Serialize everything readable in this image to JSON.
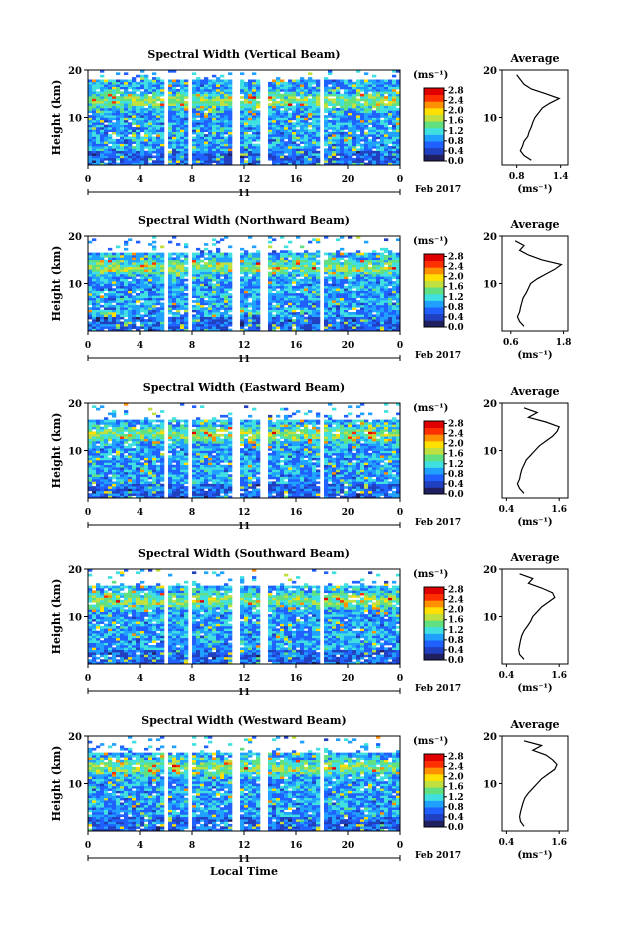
{
  "chart_data": {
    "type": "heatmap",
    "panels": [
      {
        "title": "Spectral Width (Vertical Beam)",
        "avg_title": "Average",
        "avg_ticks": [
          "0.8",
          "1.4"
        ],
        "avg_xlim": [
          0.6,
          1.5
        ],
        "avg_profile": [
          [
            1.0,
            1
          ],
          [
            0.9,
            2
          ],
          [
            0.85,
            3
          ],
          [
            0.88,
            4
          ],
          [
            0.9,
            5
          ],
          [
            0.95,
            6
          ],
          [
            0.97,
            7
          ],
          [
            1.0,
            8
          ],
          [
            1.02,
            9
          ],
          [
            1.05,
            10
          ],
          [
            1.1,
            11
          ],
          [
            1.15,
            12
          ],
          [
            1.25,
            13
          ],
          [
            1.38,
            14
          ],
          [
            1.2,
            15
          ],
          [
            1.0,
            16
          ],
          [
            0.9,
            17
          ],
          [
            0.85,
            18
          ],
          [
            0.8,
            19
          ]
        ]
      },
      {
        "title": "Spectral Width (Northward Beam)",
        "avg_title": "Average",
        "avg_ticks": [
          "0.6",
          "1.8"
        ],
        "avg_xlim": [
          0.4,
          1.9
        ],
        "avg_profile": [
          [
            0.9,
            1
          ],
          [
            0.8,
            2
          ],
          [
            0.75,
            3
          ],
          [
            0.8,
            4
          ],
          [
            0.82,
            5
          ],
          [
            0.85,
            6
          ],
          [
            0.88,
            7
          ],
          [
            0.95,
            8
          ],
          [
            1.0,
            9
          ],
          [
            1.05,
            10
          ],
          [
            1.2,
            11
          ],
          [
            1.4,
            12
          ],
          [
            1.6,
            13
          ],
          [
            1.75,
            14
          ],
          [
            1.3,
            15
          ],
          [
            1.0,
            16
          ],
          [
            0.8,
            17
          ],
          [
            0.9,
            18
          ],
          [
            0.7,
            19
          ]
        ]
      },
      {
        "title": "Spectral Width (Eastward Beam)",
        "avg_title": "Average",
        "avg_ticks": [
          "0.4",
          "1.6"
        ],
        "avg_xlim": [
          0.3,
          1.8
        ],
        "avg_profile": [
          [
            0.8,
            1
          ],
          [
            0.7,
            2
          ],
          [
            0.65,
            3
          ],
          [
            0.7,
            4
          ],
          [
            0.72,
            5
          ],
          [
            0.75,
            6
          ],
          [
            0.8,
            7
          ],
          [
            0.85,
            8
          ],
          [
            0.95,
            9
          ],
          [
            1.05,
            10
          ],
          [
            1.15,
            11
          ],
          [
            1.3,
            12
          ],
          [
            1.45,
            13
          ],
          [
            1.55,
            14
          ],
          [
            1.6,
            15
          ],
          [
            1.3,
            16
          ],
          [
            0.9,
            17
          ],
          [
            1.1,
            18
          ],
          [
            0.8,
            19
          ]
        ]
      },
      {
        "title": "Spectral Width (Southward Beam)",
        "avg_title": "Average",
        "avg_ticks": [
          "0.4",
          "1.6"
        ],
        "avg_xlim": [
          0.3,
          1.8
        ],
        "avg_profile": [
          [
            0.8,
            1
          ],
          [
            0.7,
            2
          ],
          [
            0.68,
            3
          ],
          [
            0.7,
            4
          ],
          [
            0.72,
            5
          ],
          [
            0.75,
            6
          ],
          [
            0.8,
            7
          ],
          [
            0.88,
            8
          ],
          [
            0.95,
            9
          ],
          [
            1.0,
            10
          ],
          [
            1.1,
            11
          ],
          [
            1.2,
            12
          ],
          [
            1.35,
            13
          ],
          [
            1.5,
            14
          ],
          [
            1.45,
            15
          ],
          [
            1.2,
            16
          ],
          [
            0.9,
            17
          ],
          [
            1.0,
            18
          ],
          [
            0.7,
            19
          ]
        ]
      },
      {
        "title": "Spectral Width (Westward Beam)",
        "avg_title": "Average",
        "avg_ticks": [
          "0.4",
          "1.6"
        ],
        "avg_xlim": [
          0.3,
          1.8
        ],
        "avg_profile": [
          [
            0.8,
            1
          ],
          [
            0.72,
            2
          ],
          [
            0.7,
            3
          ],
          [
            0.72,
            4
          ],
          [
            0.75,
            5
          ],
          [
            0.78,
            6
          ],
          [
            0.82,
            7
          ],
          [
            0.9,
            8
          ],
          [
            1.0,
            9
          ],
          [
            1.1,
            10
          ],
          [
            1.2,
            11
          ],
          [
            1.35,
            12
          ],
          [
            1.5,
            13
          ],
          [
            1.55,
            14
          ],
          [
            1.45,
            15
          ],
          [
            1.3,
            16
          ],
          [
            1.0,
            17
          ],
          [
            1.2,
            18
          ],
          [
            0.8,
            19
          ]
        ]
      }
    ],
    "ylabel": "Height (km)",
    "yticks": [
      "20",
      "10"
    ],
    "ylim": [
      0,
      20
    ],
    "xlabel": "Local Time",
    "xticks": [
      "0",
      "4",
      "8",
      "12",
      "16",
      "20",
      "0"
    ],
    "xlim": [
      0,
      24
    ],
    "day_label": "11",
    "date_label": "Feb 2017",
    "colorbar_unit": "(ms⁻¹)",
    "colorbar_ticks": [
      "2.8",
      "2.4",
      "2.0",
      "1.6",
      "1.2",
      "0.8",
      "0.4",
      "0.0"
    ],
    "colorbar_range": [
      0.0,
      2.9
    ],
    "avg_unit": "(ms⁻¹)",
    "data_gaps_hours": [
      [
        5.8,
        6.2
      ],
      [
        7.7,
        8.1
      ],
      [
        11.2,
        11.6
      ],
      [
        13.3,
        13.7
      ],
      [
        17.8,
        18.2
      ]
    ],
    "colormap": [
      "#202060",
      "#2040c0",
      "#2060ff",
      "#20a0ff",
      "#40e0e0",
      "#60e080",
      "#c0e040",
      "#ffe000",
      "#ff9000",
      "#ff3000",
      "#e00000"
    ]
  }
}
